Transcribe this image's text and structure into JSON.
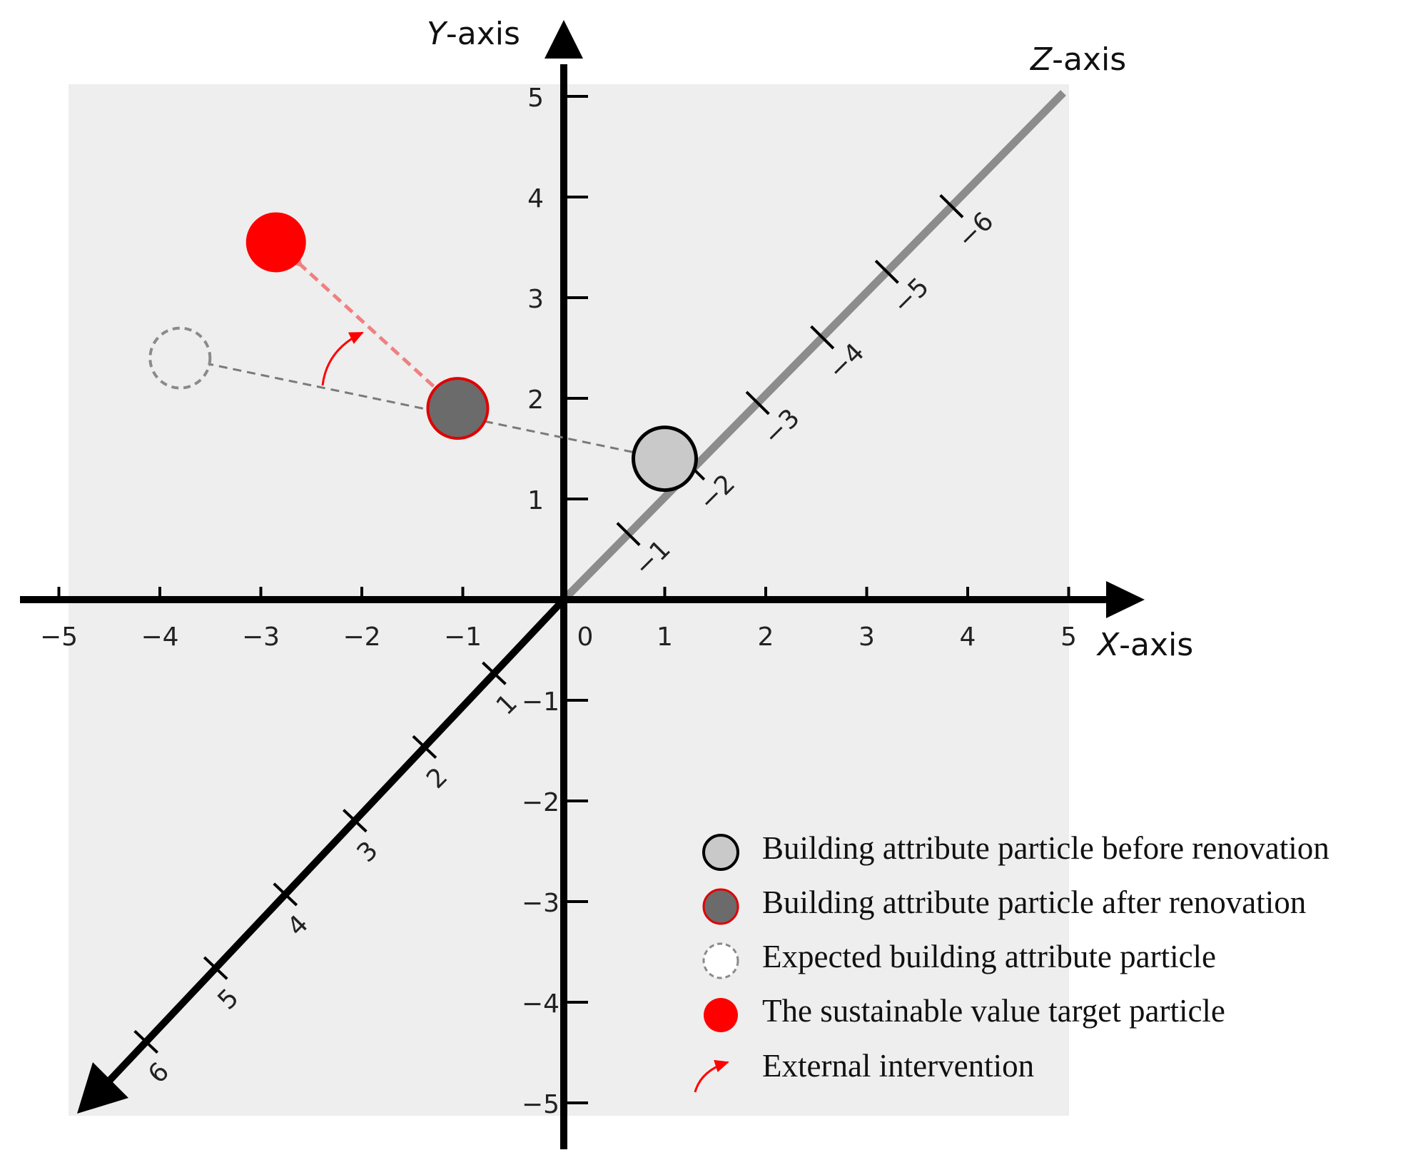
{
  "axes": {
    "x_title_letter": "X",
    "x_title_suffix": "-axis",
    "y_title_letter": "Y",
    "y_title_suffix": "-axis",
    "z_title_letter": "Z",
    "z_title_suffix": "-axis",
    "x_ticks": [
      "−5",
      "−4",
      "−3",
      "−2",
      "−1",
      "0",
      "1",
      "2",
      "3",
      "4",
      "5"
    ],
    "y_ticks_pos": [
      "5",
      "4",
      "3",
      "2",
      "1"
    ],
    "y_ticks_neg": [
      "−1",
      "−2",
      "−3",
      "−4",
      "−5"
    ],
    "z_ticks_upper": [
      "−1",
      "−2",
      "−3",
      "−4",
      "−5",
      "−6"
    ],
    "z_ticks_lower": [
      "1",
      "2",
      "3",
      "4",
      "5",
      "6"
    ]
  },
  "particles": {
    "before_renovation": {
      "x": 1.0,
      "y": 1.4
    },
    "after_renovation": {
      "x": -1.05,
      "y": 1.9
    },
    "expected": {
      "x": -3.8,
      "y": 2.4
    },
    "target": {
      "x": -2.85,
      "y": 3.55
    }
  },
  "legend": {
    "before": "Building attribute particle before renovation",
    "after": "Building attribute particle after renovation",
    "expected": "Expected building attribute particle",
    "target": "The sustainable value target particle",
    "intervention": "External intervention"
  },
  "colors": {
    "background_panel": "#eeeeee",
    "axis": "#000000",
    "z_axis_upper": "#8c8c8c",
    "before_fill": "#c9c9c9",
    "after_fill": "#6b6b6b",
    "after_stroke": "#e00000",
    "expected_stroke": "#8a8a8a",
    "target_fill": "#ff0000",
    "intervention_arrow": "#ff0000",
    "target_arrow": "#f08080"
  }
}
